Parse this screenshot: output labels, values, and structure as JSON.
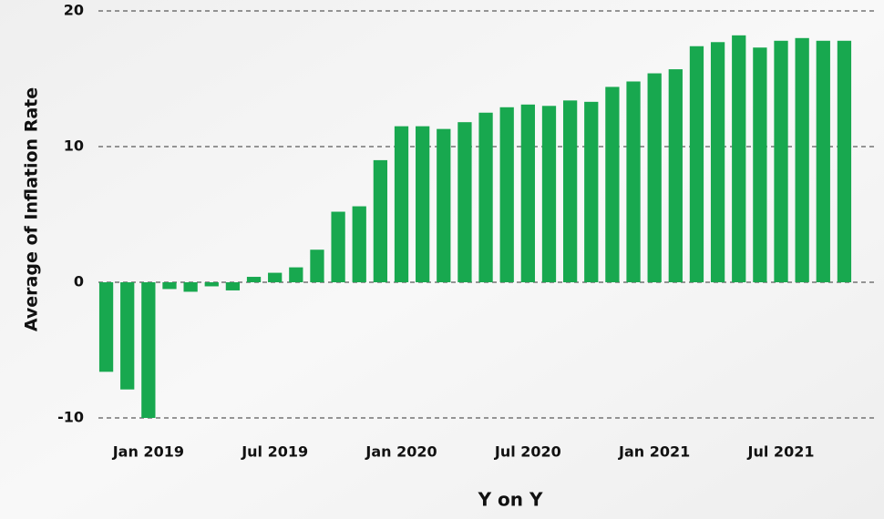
{
  "chart_data": {
    "type": "bar",
    "xlabel": "Y on Y",
    "ylabel": "Average of Inflation Rate",
    "categories": [
      null,
      null,
      "Jan 2019",
      null,
      null,
      null,
      null,
      null,
      "Jul 2019",
      null,
      null,
      null,
      null,
      null,
      "Jan 2020",
      null,
      null,
      null,
      null,
      null,
      "Jul 2020",
      null,
      null,
      null,
      null,
      null,
      "Jan 2021",
      null,
      null,
      null,
      null,
      null,
      "Jul 2021",
      null,
      null,
      null
    ],
    "values": [
      -6.6,
      -7.9,
      -10,
      -0.5,
      -0.7,
      -0.3,
      -0.6,
      0.4,
      0.7,
      1.1,
      2.4,
      5.2,
      5.6,
      9.0,
      11.5,
      11.5,
      11.3,
      11.8,
      12.5,
      12.9,
      13.1,
      13.0,
      13.4,
      13.3,
      14.4,
      14.8,
      15.4,
      15.7,
      17.4,
      17.7,
      18.2,
      17.3,
      17.8,
      18.0,
      17.8,
      17.8
    ],
    "color": "#18a84f",
    "ylim": [
      -10,
      20
    ],
    "yticks": [
      -10,
      0,
      10,
      20
    ],
    "grid": true
  }
}
